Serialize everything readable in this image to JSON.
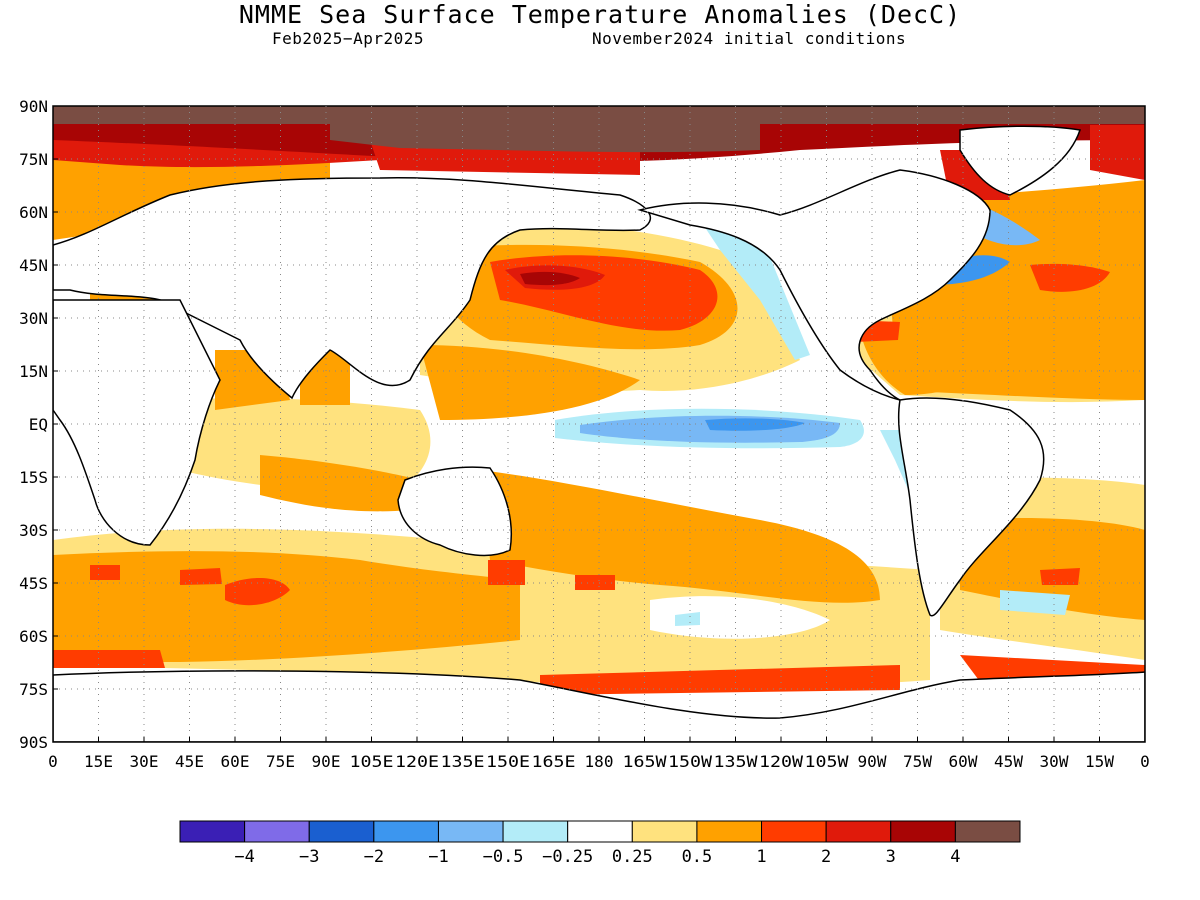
{
  "title": "NMME Sea Surface Temperature Anomalies (DecC)",
  "subtitle_left": "Feb2025−Apr2025",
  "subtitle_right": "November2024 initial conditions",
  "lat_labels": [
    "90N",
    "75N",
    "60N",
    "45N",
    "30N",
    "15N",
    "EQ",
    "15S",
    "30S",
    "45S",
    "60S",
    "75S",
    "90S"
  ],
  "lon_labels": [
    "0",
    "15E",
    "30E",
    "45E",
    "60E",
    "75E",
    "90E",
    "105E",
    "120E",
    "135E",
    "150E",
    "165E",
    "180",
    "165W",
    "150W",
    "135W",
    "120W",
    "105W",
    "90W",
    "75W",
    "60W",
    "45W",
    "30W",
    "15W",
    "0"
  ],
  "colorbar": {
    "colors": [
      "#3a1fb5",
      "#7f6be8",
      "#1a5fd0",
      "#3c96ef",
      "#78b8f5",
      "#b3ecf8",
      "#ffffff",
      "#ffe27e",
      "#ffa100",
      "#ff3c00",
      "#e01a0b",
      "#a80505",
      "#7a4d43"
    ],
    "tick_labels": [
      "−4",
      "−3",
      "−2",
      "−1",
      "−0.5",
      "−0.25",
      "0.25",
      "0.5",
      "1",
      "2",
      "3",
      "4"
    ]
  },
  "colors": {
    "brown": "#7a4d43",
    "dark_red": "#a80505",
    "red": "#e01a0b",
    "red_orange": "#ff3c00",
    "orange": "#ffa100",
    "yellow": "#ffe27e",
    "light_cyan": "#b3ecf8",
    "light_blue": "#78b8f5",
    "blue": "#3c96ef"
  }
}
